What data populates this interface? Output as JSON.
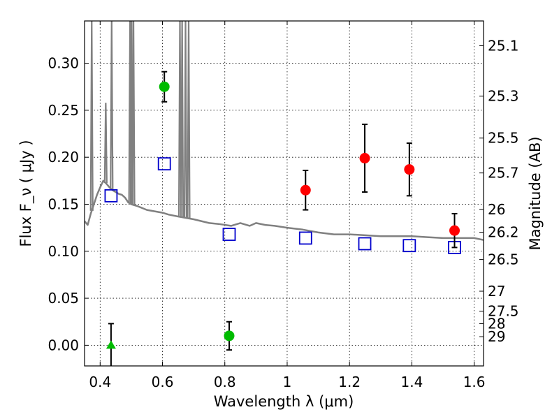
{
  "chart_data": {
    "type": "scatter",
    "xlabel": "Wavelength  λ (μm)",
    "ylabel": "Flux  F_ν  ( μJy )",
    "y2label": "Magnitude (AB)",
    "xlim": [
      0.35,
      1.63
    ],
    "ylim": [
      -0.022,
      0.345
    ],
    "grid": true,
    "x_ticks": [
      0.4,
      0.6,
      0.8,
      1.0,
      1.2,
      1.4,
      1.6
    ],
    "x_tick_labels": [
      "0.4",
      "0.6",
      "0.8",
      "1",
      "1.2",
      "1.4",
      "1.6"
    ],
    "y_ticks": [
      0.0,
      0.05,
      0.1,
      0.15,
      0.2,
      0.25,
      0.3
    ],
    "y_tick_labels": [
      "0.00",
      "0.05",
      "0.10",
      "0.15",
      "0.20",
      "0.25",
      "0.30"
    ],
    "y2_ticks": [
      {
        "label": "25.1",
        "flux": 0.3186
      },
      {
        "label": "25.3",
        "flux": 0.265
      },
      {
        "label": "25.5",
        "flux": 0.2204
      },
      {
        "label": "25.7",
        "flux": 0.1833
      },
      {
        "label": "26",
        "flux": 0.1445
      },
      {
        "label": "26.2",
        "flux": 0.1202
      },
      {
        "label": "26.5",
        "flux": 0.0912
      },
      {
        "label": "27",
        "flux": 0.0575
      },
      {
        "label": "27.5",
        "flux": 0.0363
      },
      {
        "label": "28",
        "flux": 0.0229
      },
      {
        "label": "29",
        "flux": 0.0091
      }
    ],
    "series": [
      {
        "kind": "sed-model",
        "color": "#808080",
        "points": [
          [
            0.35,
            0.132
          ],
          [
            0.36,
            0.128
          ],
          [
            0.37,
            0.14
          ],
          [
            0.38,
            0.15
          ],
          [
            0.39,
            0.16
          ],
          [
            0.4,
            0.168
          ],
          [
            0.41,
            0.175
          ],
          [
            0.42,
            0.172
          ],
          [
            0.43,
            0.168
          ],
          [
            0.44,
            0.165
          ],
          [
            0.45,
            0.163
          ],
          [
            0.46,
            0.161
          ],
          [
            0.47,
            0.16
          ],
          [
            0.48,
            0.157
          ],
          [
            0.49,
            0.152
          ],
          [
            0.5,
            0.15
          ],
          [
            0.52,
            0.148
          ],
          [
            0.55,
            0.144
          ],
          [
            0.6,
            0.141
          ],
          [
            0.62,
            0.139
          ],
          [
            0.65,
            0.137
          ],
          [
            0.7,
            0.134
          ],
          [
            0.75,
            0.13
          ],
          [
            0.78,
            0.129
          ],
          [
            0.82,
            0.127
          ],
          [
            0.85,
            0.13
          ],
          [
            0.88,
            0.127
          ],
          [
            0.9,
            0.13
          ],
          [
            0.93,
            0.128
          ],
          [
            0.96,
            0.127
          ],
          [
            1.0,
            0.125
          ],
          [
            1.05,
            0.123
          ],
          [
            1.1,
            0.12
          ],
          [
            1.15,
            0.118
          ],
          [
            1.2,
            0.118
          ],
          [
            1.25,
            0.117
          ],
          [
            1.3,
            0.116
          ],
          [
            1.35,
            0.116
          ],
          [
            1.4,
            0.116
          ],
          [
            1.45,
            0.115
          ],
          [
            1.5,
            0.114
          ],
          [
            1.55,
            0.114
          ],
          [
            1.6,
            0.114
          ],
          [
            1.63,
            0.112
          ]
        ],
        "spikes": [
          {
            "x": 0.373,
            "top": 0.345
          },
          {
            "x": 0.418,
            "top": 0.258
          },
          {
            "x": 0.437,
            "top": 0.345
          },
          {
            "x": 0.496,
            "top": 0.345
          },
          {
            "x": 0.501,
            "top": 0.345
          },
          {
            "x": 0.507,
            "top": 0.345
          },
          {
            "x": 0.656,
            "top": 0.345
          },
          {
            "x": 0.663,
            "top": 0.345
          },
          {
            "x": 0.674,
            "top": 0.345
          },
          {
            "x": 0.684,
            "top": 0.345
          }
        ]
      },
      {
        "kind": "model-photometry",
        "marker": "open-square",
        "color": "#0000cc",
        "points": [
          [
            0.435,
            0.159
          ],
          [
            0.606,
            0.193
          ],
          [
            0.814,
            0.118
          ],
          [
            1.059,
            0.114
          ],
          [
            1.249,
            0.108
          ],
          [
            1.392,
            0.106
          ],
          [
            1.537,
            0.104
          ]
        ]
      },
      {
        "kind": "observed",
        "marker": "circle",
        "color": "#00bb00",
        "points": [
          {
            "x": 0.606,
            "y": 0.275,
            "err": 0.016
          },
          {
            "x": 0.814,
            "y": 0.01,
            "err": 0.015
          }
        ]
      },
      {
        "kind": "upper-limit",
        "marker": "triangle",
        "color": "#00bb00",
        "points": [
          {
            "x": 0.435,
            "y": 0.0,
            "err": 0.023
          }
        ]
      },
      {
        "kind": "observed",
        "marker": "circle",
        "color": "#ff0000",
        "points": [
          {
            "x": 1.059,
            "y": 0.165,
            "err": 0.021
          },
          {
            "x": 1.249,
            "y": 0.199,
            "err": 0.036
          },
          {
            "x": 1.392,
            "y": 0.187,
            "err": 0.028
          },
          {
            "x": 1.537,
            "y": 0.122,
            "err": 0.018
          }
        ]
      }
    ]
  }
}
